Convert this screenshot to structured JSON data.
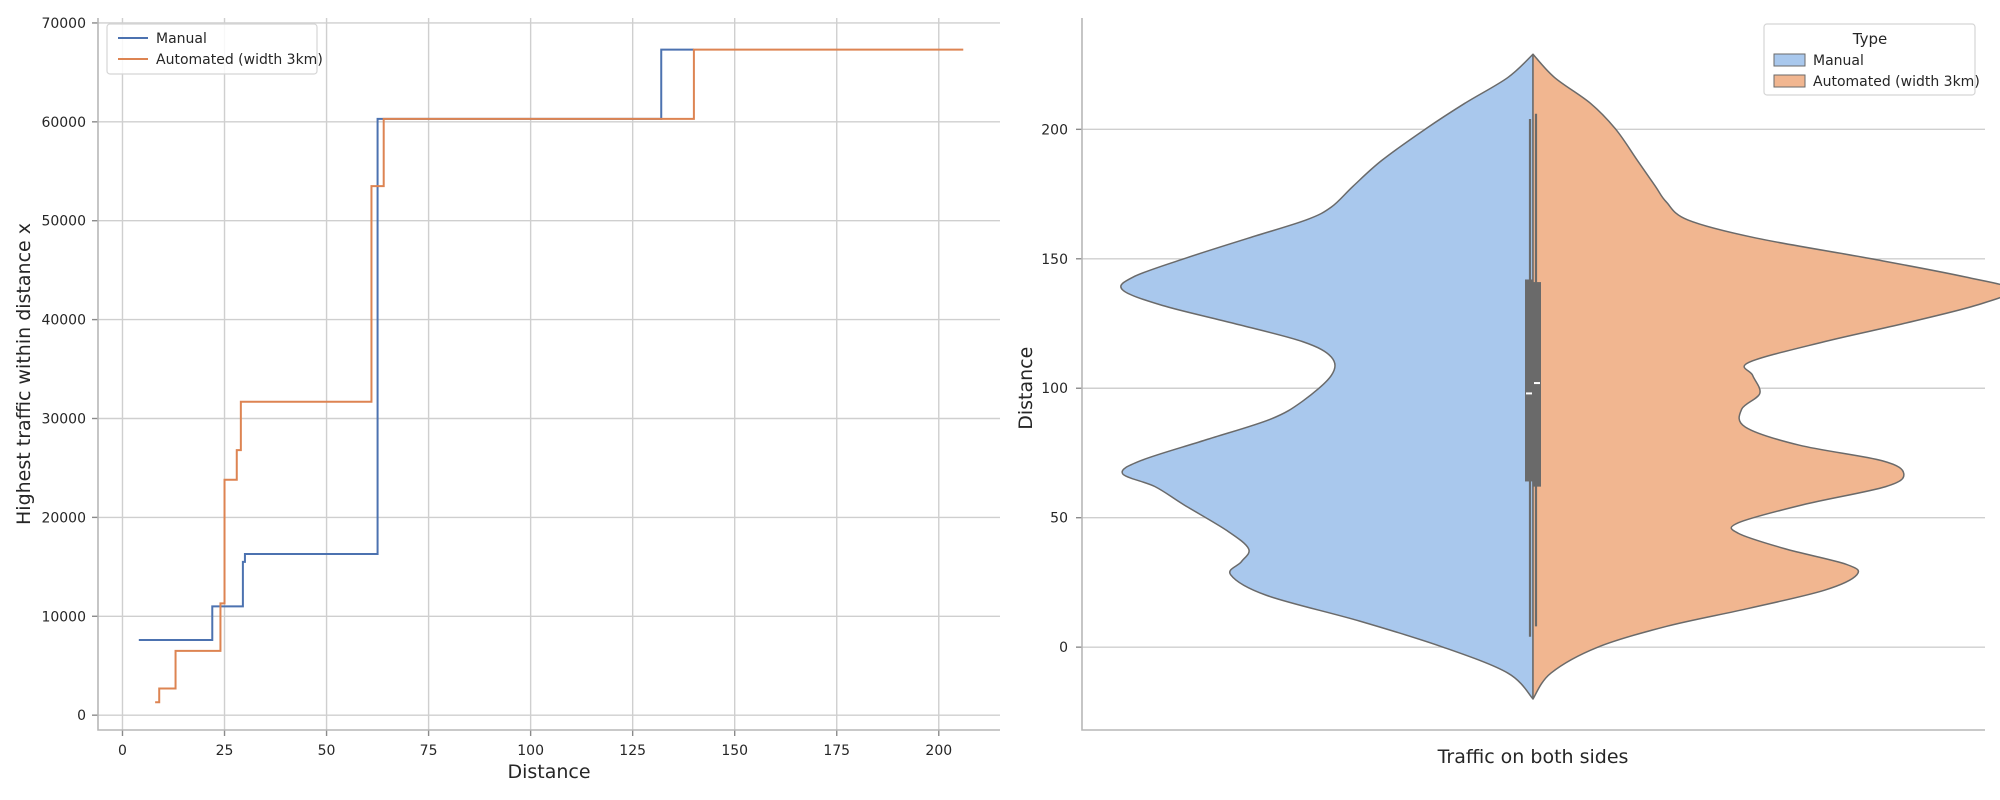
{
  "chart_data": [
    {
      "type": "line",
      "step": "post",
      "xlabel": "Distance",
      "ylabel": "Highest traffic within distance x",
      "xlim": [
        -6,
        215
      ],
      "ylim": [
        -1500,
        70500
      ],
      "xticks": [
        0,
        25,
        50,
        75,
        100,
        125,
        150,
        175,
        200
      ],
      "yticks": [
        0,
        10000,
        20000,
        30000,
        40000,
        50000,
        60000,
        70000
      ],
      "grid": true,
      "legend": "top-left",
      "series": [
        {
          "name": "Manual",
          "color": "#4c72b0",
          "x": [
            4,
            22,
            29.5,
            30,
            62.5,
            63.5,
            132,
            140
          ],
          "y": [
            7600,
            11000,
            15500,
            16300,
            60300,
            60300,
            67300,
            67300
          ]
        },
        {
          "name": "Automated (width 3km)",
          "color": "#dd8452",
          "x": [
            8,
            9,
            13,
            24,
            25,
            28,
            29,
            61,
            62.5,
            64,
            140,
            206
          ],
          "y": [
            1300,
            2700,
            6500,
            11300,
            23800,
            26800,
            31700,
            53500,
            53500,
            60300,
            67300,
            67300
          ]
        }
      ]
    },
    {
      "type": "violin",
      "split": true,
      "xlabel": "Traffic on both sides",
      "ylabel": "Distance",
      "ylim": [
        -32,
        243
      ],
      "yticks": [
        0,
        50,
        100,
        150,
        200
      ],
      "grid": true,
      "legend": "top-right",
      "legend_title": "Type",
      "series": [
        {
          "name": "Manual",
          "color": "#a9c8ed",
          "side": "left",
          "profile_y": [
            -20,
            -10,
            0,
            10,
            20,
            28,
            33,
            38,
            45,
            55,
            62,
            67,
            72,
            80,
            88,
            95,
            105,
            112,
            118,
            125,
            132,
            138,
            143,
            150,
            158,
            165,
            170,
            178,
            188,
            200,
            210,
            220,
            229
          ],
          "profile_width": [
            0.0,
            0.07,
            0.25,
            0.48,
            0.74,
            0.84,
            0.81,
            0.79,
            0.85,
            0.97,
            1.05,
            1.14,
            1.09,
            0.91,
            0.73,
            0.64,
            0.56,
            0.56,
            0.64,
            0.83,
            1.03,
            1.14,
            1.11,
            0.97,
            0.79,
            0.63,
            0.56,
            0.5,
            0.42,
            0.3,
            0.19,
            0.07,
            0.0
          ],
          "box": {
            "q1": 64,
            "median": 98,
            "q3": 142,
            "whisker_low": 4,
            "whisker_high": 204
          }
        },
        {
          "name": "Automated (width 3km)",
          "color": "#f1b690",
          "side": "right",
          "profile_y": [
            -20,
            -10,
            0,
            8,
            15,
            22,
            28,
            32,
            38,
            44,
            48,
            55,
            62,
            67,
            72,
            78,
            85,
            92,
            98,
            105,
            110,
            118,
            125,
            132,
            138,
            143,
            150,
            158,
            165,
            172,
            178,
            188,
            200,
            210,
            220,
            229
          ],
          "profile_width": [
            0.0,
            0.05,
            0.18,
            0.37,
            0.6,
            0.81,
            0.9,
            0.87,
            0.7,
            0.57,
            0.57,
            0.75,
            0.98,
            1.03,
            0.97,
            0.74,
            0.59,
            0.58,
            0.63,
            0.61,
            0.6,
            0.81,
            1.03,
            1.23,
            1.33,
            1.2,
            0.94,
            0.62,
            0.43,
            0.37,
            0.34,
            0.29,
            0.23,
            0.16,
            0.06,
            0.0
          ],
          "box": {
            "q1": 62,
            "median": 102,
            "q3": 141,
            "whisker_low": 8,
            "whisker_high": 206
          }
        }
      ]
    }
  ]
}
